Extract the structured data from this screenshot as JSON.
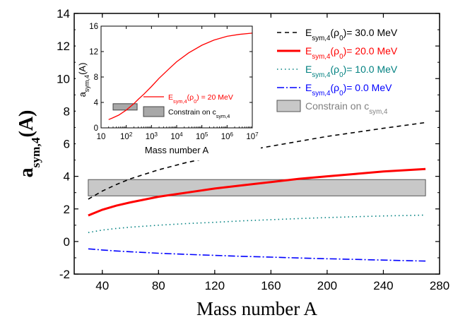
{
  "chart_data": [
    {
      "type": "line",
      "xlabel": "Mass number A",
      "ylabel": "a_sym,4(A)",
      "xlim": [
        20,
        280
      ],
      "ylim": [
        -2,
        14
      ],
      "xticks": [
        40,
        80,
        120,
        160,
        200,
        240,
        280
      ],
      "yticks": [
        -2,
        0,
        2,
        4,
        6,
        8,
        10,
        12,
        14
      ],
      "grid": false,
      "legend_position": "top-right",
      "series": [
        {
          "name": "Esym,4(ρ0)= 30.0 MeV",
          "color": "#000000",
          "style": "dashed",
          "x": [
            30,
            40,
            50,
            60,
            80,
            100,
            120,
            140,
            160,
            180,
            200,
            220,
            240,
            270
          ],
          "y": [
            2.6,
            3.1,
            3.5,
            3.85,
            4.4,
            4.85,
            5.2,
            5.55,
            5.85,
            6.15,
            6.45,
            6.7,
            6.95,
            7.3
          ]
        },
        {
          "name": "Esym,4(ρ0)= 20.0 MeV",
          "color": "#ff0000",
          "style": "solid",
          "x": [
            30,
            40,
            50,
            60,
            80,
            100,
            120,
            140,
            160,
            180,
            200,
            220,
            240,
            270
          ],
          "y": [
            1.6,
            1.95,
            2.2,
            2.4,
            2.75,
            3.0,
            3.25,
            3.45,
            3.65,
            3.85,
            4.0,
            4.15,
            4.3,
            4.45
          ]
        },
        {
          "name": "Esym,4(ρ0)= 10.0 MeV",
          "color": "#008080",
          "style": "dotted",
          "x": [
            30,
            40,
            50,
            60,
            80,
            100,
            120,
            140,
            160,
            180,
            200,
            220,
            240,
            270
          ],
          "y": [
            0.55,
            0.7,
            0.8,
            0.88,
            1.0,
            1.1,
            1.18,
            1.27,
            1.34,
            1.41,
            1.47,
            1.52,
            1.57,
            1.62
          ]
        },
        {
          "name": "Esym,4(ρ0)= 0.0 MeV",
          "color": "#0000ff",
          "style": "dash-dot",
          "x": [
            30,
            40,
            50,
            60,
            80,
            100,
            120,
            140,
            160,
            180,
            200,
            220,
            240,
            270
          ],
          "y": [
            -0.45,
            -0.52,
            -0.58,
            -0.63,
            -0.72,
            -0.79,
            -0.85,
            -0.91,
            -0.96,
            -1.01,
            -1.06,
            -1.1,
            -1.14,
            -1.2
          ]
        }
      ],
      "band": {
        "name": "Constrain on csym,4",
        "x": [
          30,
          270
        ],
        "y": [
          2.8,
          3.8
        ],
        "fill": "#c8c8c8",
        "label_color": "#808080"
      }
    },
    {
      "type": "line",
      "xlabel": "Mass number A",
      "ylabel": "a_sym,4(A)",
      "xscale": "log",
      "xlim": [
        10,
        10000000
      ],
      "ylim": [
        0,
        16
      ],
      "xticks": [
        10,
        100,
        1000,
        10000,
        100000,
        1000000,
        10000000
      ],
      "xtick_labels": [
        [
          "10",
          ""
        ],
        [
          "10",
          "2"
        ],
        [
          "10",
          "3"
        ],
        [
          "10",
          "4"
        ],
        [
          "10",
          "5"
        ],
        [
          "10",
          "6"
        ],
        [
          "10",
          "7"
        ]
      ],
      "yticks": [
        0,
        4,
        8,
        12,
        16
      ],
      "legend_position": "bottom-right",
      "series": [
        {
          "name": "Esym,4(ρ0) = 20 MeV",
          "color": "#ff0000",
          "style": "solid",
          "x": [
            20,
            30,
            50,
            100,
            200,
            300,
            500,
            1000,
            2000,
            5000,
            10000,
            30000,
            100000,
            300000,
            1000000,
            3000000,
            10000000
          ],
          "y": [
            1.3,
            1.6,
            2.0,
            2.8,
            3.8,
            4.5,
            5.3,
            6.5,
            7.8,
            9.3,
            10.4,
            11.8,
            13.0,
            13.8,
            14.4,
            14.7,
            14.9
          ]
        }
      ],
      "band": {
        "name": "Constrain on csym,4",
        "x": [
          30,
          270
        ],
        "y": [
          2.8,
          3.8
        ],
        "fill": "#a8a8a8"
      }
    }
  ]
}
